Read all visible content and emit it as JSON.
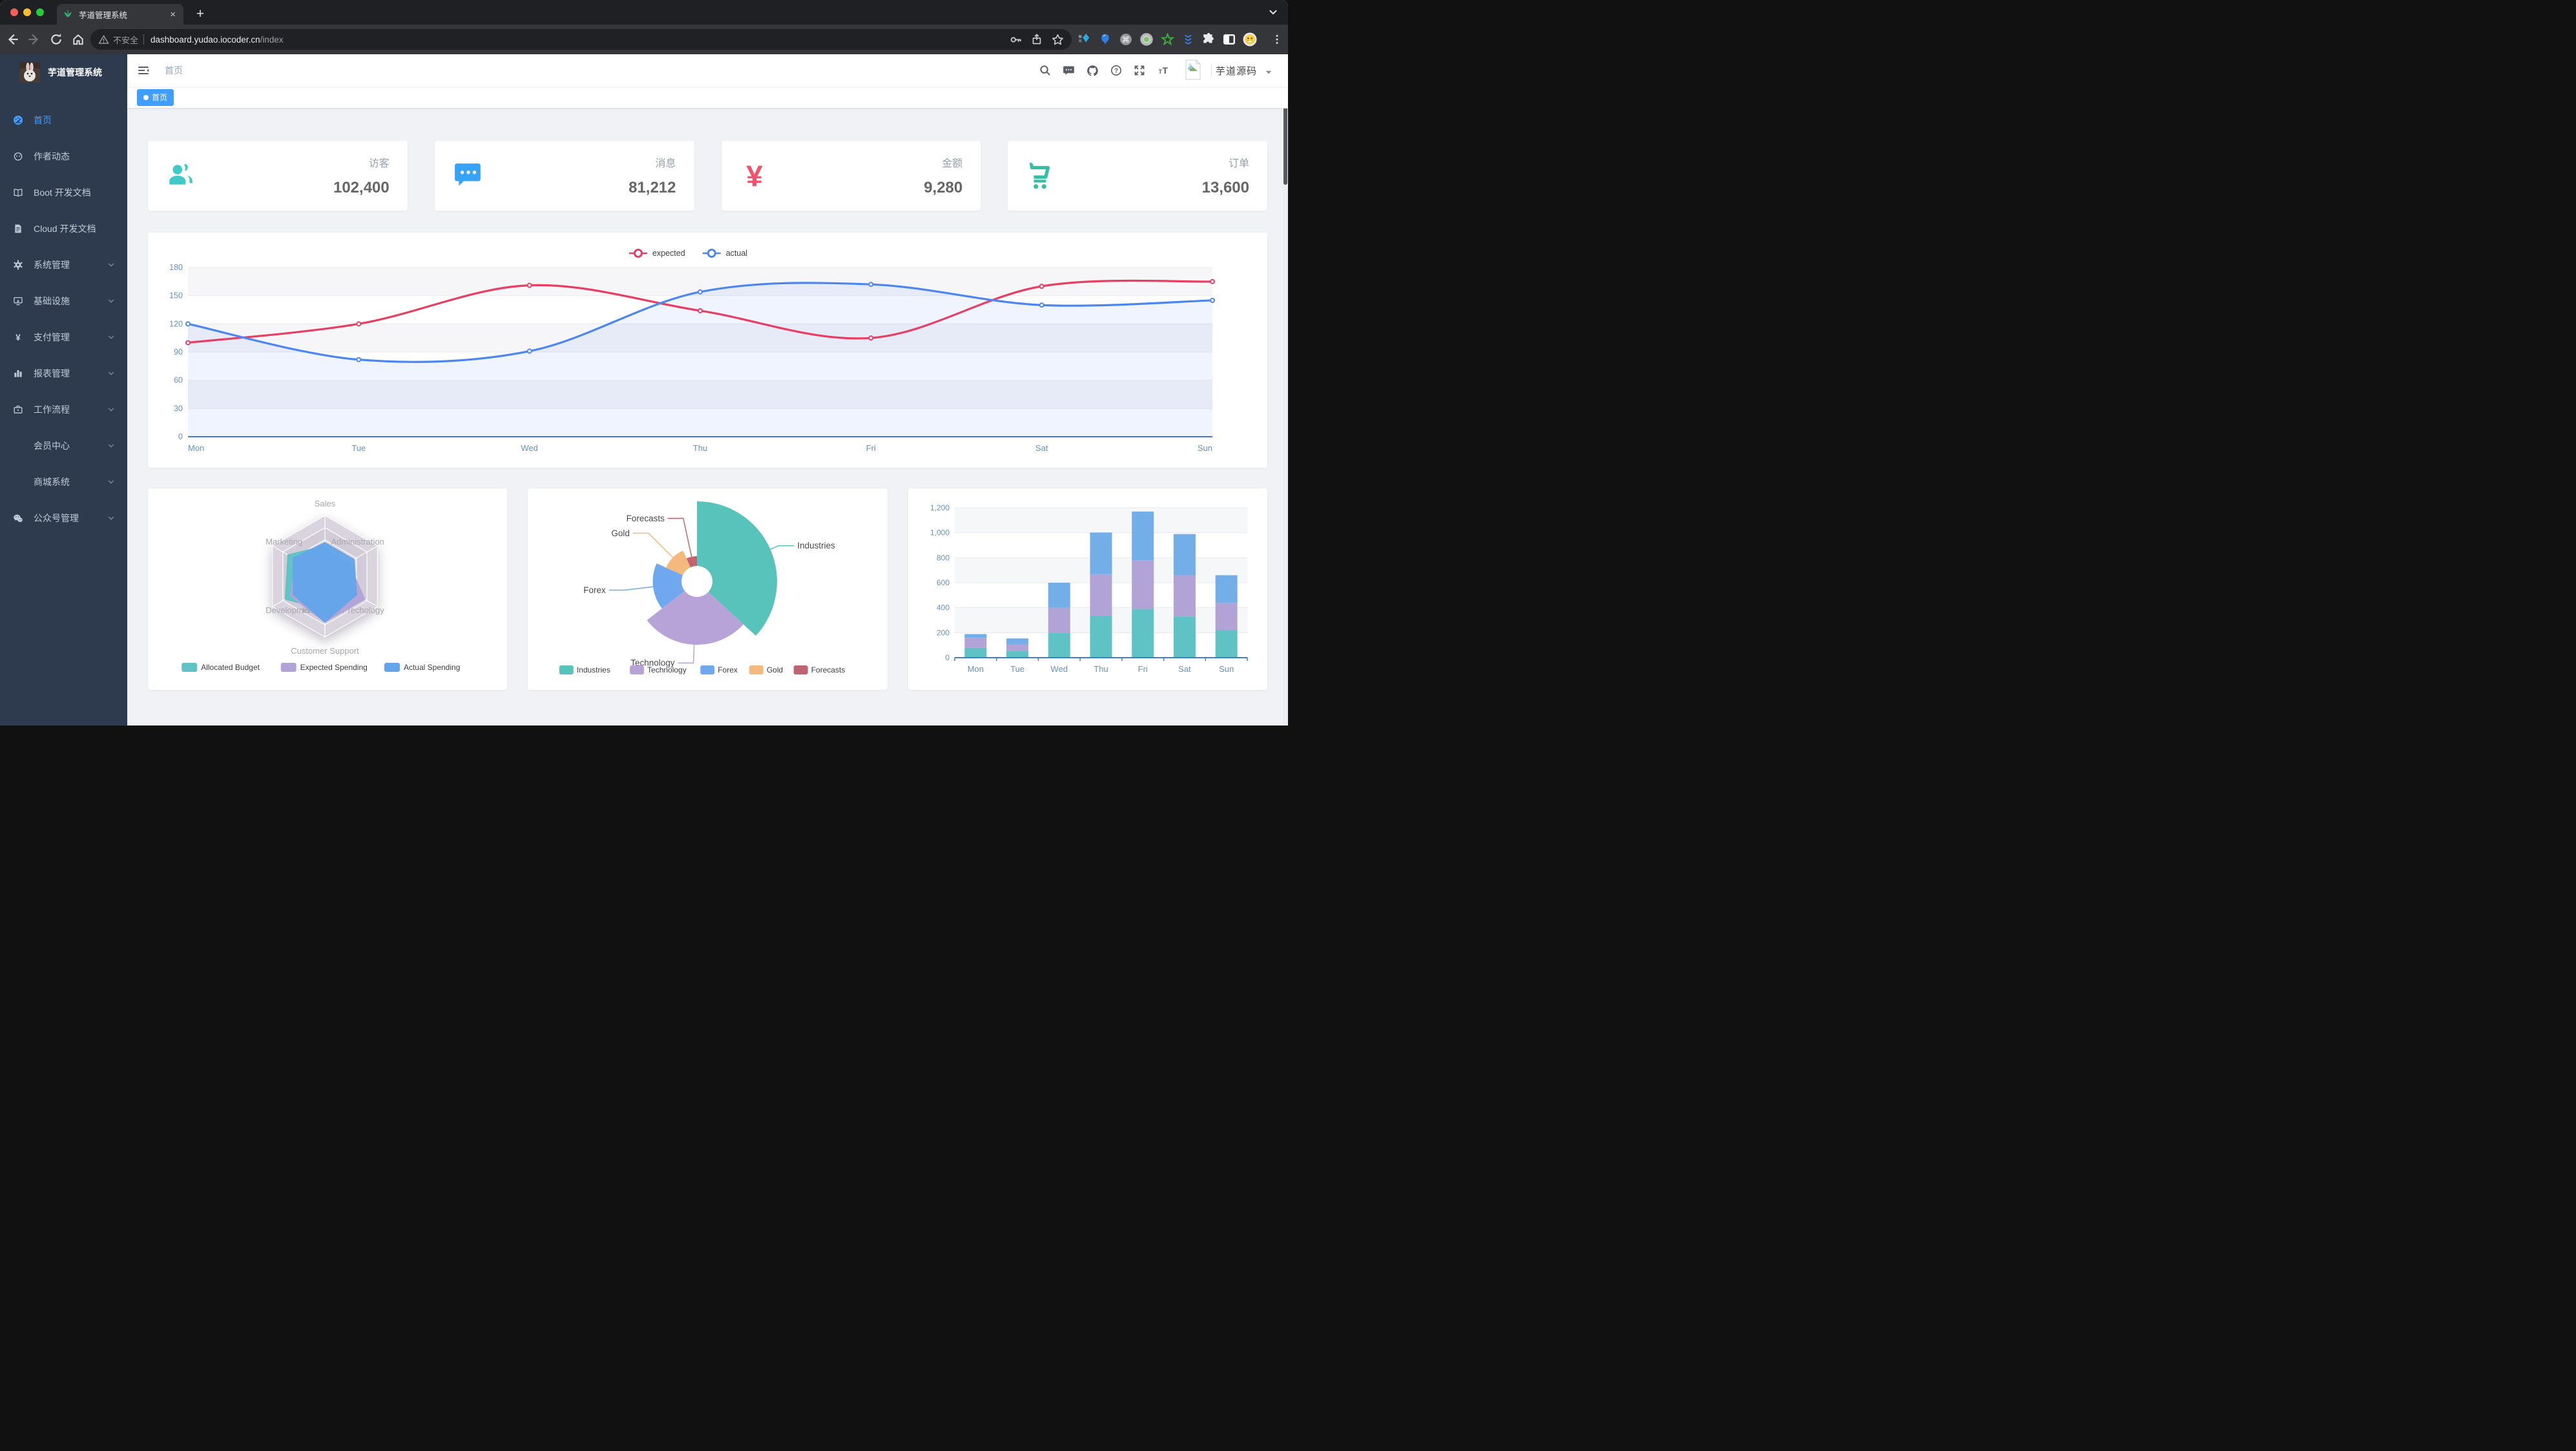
{
  "browser": {
    "tab_title": "芋道管理系统",
    "close_label": "×",
    "new_tab_label": "+",
    "security_label": "不安全",
    "url_host": "dashboard.yudao.iocoder.cn",
    "url_path": "/index",
    "ext_badge_a": "12",
    "ext_badge_b": "1",
    "traffic_colors": [
      "#f75f58",
      "#fbbd2e",
      "#28c83f"
    ]
  },
  "sidebar": {
    "logo_title": "芋道管理系统",
    "items": [
      {
        "label": "首页",
        "icon": "dashboard",
        "active": true,
        "expandable": false
      },
      {
        "label": "作者动态",
        "icon": "peoples",
        "active": false,
        "expandable": false
      },
      {
        "label": "Boot 开发文档",
        "icon": "book",
        "active": false,
        "expandable": false
      },
      {
        "label": "Cloud 开发文档",
        "icon": "document",
        "active": false,
        "expandable": false
      },
      {
        "label": "系统管理",
        "icon": "gear",
        "active": false,
        "expandable": true
      },
      {
        "label": "基础设施",
        "icon": "monitor",
        "active": false,
        "expandable": true
      },
      {
        "label": "支付管理",
        "icon": "yen",
        "active": false,
        "expandable": true
      },
      {
        "label": "报表管理",
        "icon": "chart",
        "active": false,
        "expandable": true
      },
      {
        "label": "工作流程",
        "icon": "briefcase",
        "active": false,
        "expandable": true
      },
      {
        "label": "会员中心",
        "icon": null,
        "active": false,
        "expandable": true
      },
      {
        "label": "商城系统",
        "icon": null,
        "active": false,
        "expandable": true
      },
      {
        "label": "公众号管理",
        "icon": "wechat",
        "active": false,
        "expandable": true
      }
    ]
  },
  "header": {
    "breadcrumb": "首页",
    "username": "芋道源码"
  },
  "tags": {
    "items": [
      {
        "label": "首页",
        "active": true
      }
    ]
  },
  "stats": [
    {
      "label": "访客",
      "value": "102,400",
      "icon": "people-card",
      "color": "#40c9c6"
    },
    {
      "label": "消息",
      "value": "81,212",
      "icon": "message-card",
      "color": "#36a3f7"
    },
    {
      "label": "金额",
      "value": "9,280",
      "icon": "money-card",
      "color": "#f4516c"
    },
    {
      "label": "订单",
      "value": "13,600",
      "icon": "cart-card",
      "color": "#34bfa3"
    }
  ],
  "chart_data": [
    {
      "type": "line",
      "x": [
        "Mon",
        "Tue",
        "Wed",
        "Thu",
        "Fri",
        "Sat",
        "Sun"
      ],
      "series": [
        {
          "name": "expected",
          "color": "#e83e63",
          "values": [
            100,
            120,
            161,
            134,
            105,
            160,
            165
          ],
          "area": false
        },
        {
          "name": "actual",
          "color": "#4b86f2",
          "values": [
            120,
            82,
            91,
            154,
            162,
            140,
            145
          ],
          "area": true
        }
      ],
      "ylim": [
        0,
        180
      ],
      "yticks": [
        0,
        30,
        60,
        90,
        120,
        150,
        180
      ],
      "legend_position": "top",
      "grid": true,
      "axis_label_color": "#6293c5"
    },
    {
      "type": "radar",
      "indicators": [
        {
          "name": "Sales",
          "max": 10000
        },
        {
          "name": "Administration",
          "max": 20000
        },
        {
          "name": "Information Techology",
          "max": 20000
        },
        {
          "name": "Customer Support",
          "max": 20000
        },
        {
          "name": "Development",
          "max": 20000
        },
        {
          "name": "Marketing",
          "max": 20000
        }
      ],
      "series": [
        {
          "name": "Allocated Budget",
          "color": "#5fc2c4",
          "values": [
            5000,
            7000,
            12000,
            11000,
            15000,
            14000
          ]
        },
        {
          "name": "Expected Spending",
          "color": "#b2a3d7",
          "values": [
            4000,
            9000,
            15000,
            15000,
            13000,
            11000
          ]
        },
        {
          "name": "Actual Spending",
          "color": "#64a5ea",
          "values": [
            5500,
            11000,
            12000,
            15000,
            12000,
            12000
          ]
        }
      ],
      "legend_position": "bottom"
    },
    {
      "type": "pie",
      "rose": true,
      "slices": [
        {
          "name": "Industries",
          "value": 320,
          "color": "#58c3bb"
        },
        {
          "name": "Technology",
          "value": 240,
          "color": "#b8a3d9"
        },
        {
          "name": "Forex",
          "value": 149,
          "color": "#6fa8ee"
        },
        {
          "name": "Gold",
          "value": 100,
          "color": "#f5b97d"
        },
        {
          "name": "Forecasts",
          "value": 59,
          "color": "#bf6470"
        }
      ],
      "legend_position": "bottom"
    },
    {
      "type": "bar",
      "stacked": true,
      "categories": [
        "Mon",
        "Tue",
        "Wed",
        "Thu",
        "Fri",
        "Sat",
        "Sun"
      ],
      "series": [
        {
          "color": "#5fc2c4",
          "values": [
            79,
            52,
            200,
            334,
            390,
            330,
            220
          ]
        },
        {
          "color": "#b2a3d7",
          "values": [
            80,
            52,
            200,
            334,
            390,
            330,
            220
          ]
        },
        {
          "color": "#74aee8",
          "values": [
            30,
            50,
            200,
            334,
            390,
            330,
            220
          ]
        }
      ],
      "ylim": [
        0,
        1200
      ],
      "yticks": [
        0,
        200,
        400,
        600,
        800,
        1000,
        1200
      ],
      "ytick_labels": [
        "0",
        "200",
        "400",
        "600",
        "800",
        "1,000",
        "1,200"
      ],
      "axis_label_color": "#6293c5"
    }
  ],
  "colors": {
    "accent": "#409eff",
    "sidebar_bg": "#2e3b4e",
    "sidebar_text": "#bfcbd9",
    "content_bg": "#f0f2f5",
    "axis_line": "#3f7fc1"
  }
}
